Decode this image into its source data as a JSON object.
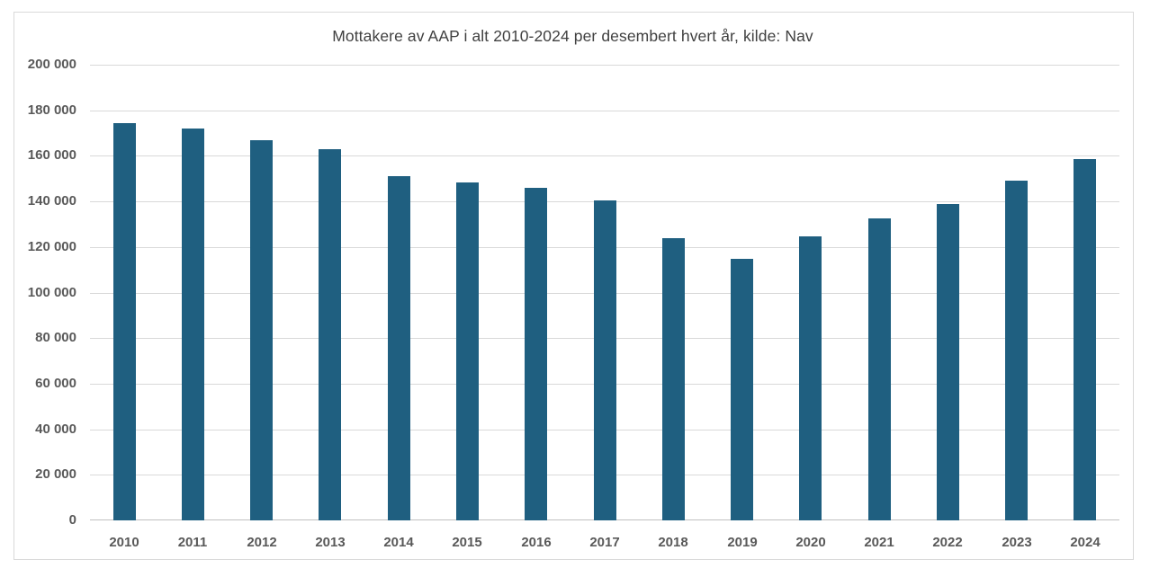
{
  "chart_data": {
    "type": "bar",
    "title": "Mottakere av AAP i alt 2010-2024 per desembert hvert år, kilde: Nav",
    "categories": [
      "2010",
      "2011",
      "2012",
      "2013",
      "2014",
      "2015",
      "2016",
      "2017",
      "2018",
      "2019",
      "2020",
      "2021",
      "2022",
      "2023",
      "2024"
    ],
    "values": [
      174200,
      172100,
      167000,
      163000,
      151200,
      148200,
      145800,
      140300,
      123900,
      114700,
      124500,
      132700,
      139000,
      149000,
      158400
    ],
    "xlabel": "",
    "ylabel": "",
    "ylim": [
      0,
      200000
    ],
    "ytick_step": 20000,
    "y_tick_labels_top_to_bottom": [
      "200 000",
      "180 000",
      "160 000",
      "140 000",
      "120 000",
      "100 000",
      "80 000",
      "60 000",
      "40 000",
      "20 000",
      "0"
    ],
    "grid": true,
    "legend_position": "none",
    "colors": {
      "bar": "#1F5F80",
      "gridline": "#D9D9D9",
      "axis_line": "#BFBFBF",
      "tick_label": "#595959",
      "title": "#404040",
      "frame_border": "#D9D9D9",
      "background": "#FFFFFF"
    }
  }
}
